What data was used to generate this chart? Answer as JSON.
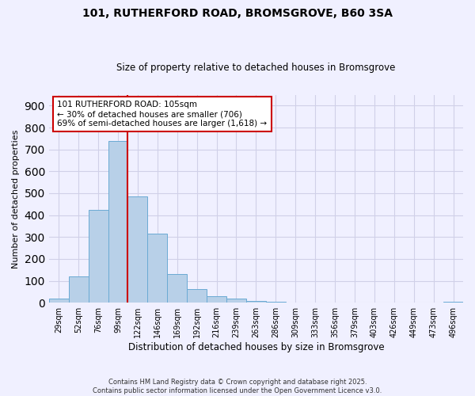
{
  "title": "101, RUTHERFORD ROAD, BROMSGROVE, B60 3SA",
  "subtitle": "Size of property relative to detached houses in Bromsgrove",
  "xlabel": "Distribution of detached houses by size in Bromsgrove",
  "ylabel": "Number of detached properties",
  "footer_line1": "Contains HM Land Registry data © Crown copyright and database right 2025.",
  "footer_line2": "Contains public sector information licensed under the Open Government Licence v3.0.",
  "bar_labels": [
    "29sqm",
    "52sqm",
    "76sqm",
    "99sqm",
    "122sqm",
    "146sqm",
    "169sqm",
    "192sqm",
    "216sqm",
    "239sqm",
    "263sqm",
    "286sqm",
    "309sqm",
    "333sqm",
    "356sqm",
    "379sqm",
    "403sqm",
    "426sqm",
    "449sqm",
    "473sqm",
    "496sqm"
  ],
  "bar_values": [
    20,
    120,
    425,
    740,
    485,
    315,
    130,
    63,
    30,
    20,
    8,
    5,
    0,
    0,
    0,
    0,
    0,
    0,
    0,
    0,
    3
  ],
  "bar_color": "#b8d0e8",
  "bar_edge_color": "#6aaad4",
  "ylim": [
    0,
    950
  ],
  "yticks": [
    0,
    100,
    200,
    300,
    400,
    500,
    600,
    700,
    800,
    900
  ],
  "vline_x": 3.5,
  "vline_color": "#cc0000",
  "annotation_title": "101 RUTHERFORD ROAD: 105sqm",
  "annotation_line1": "← 30% of detached houses are smaller (706)",
  "annotation_line2": "69% of semi-detached houses are larger (1,618) →",
  "annotation_box_color": "#ffffff",
  "annotation_box_edge": "#cc0000",
  "background_color": "#f0f0ff",
  "grid_color": "#d0d0e8"
}
